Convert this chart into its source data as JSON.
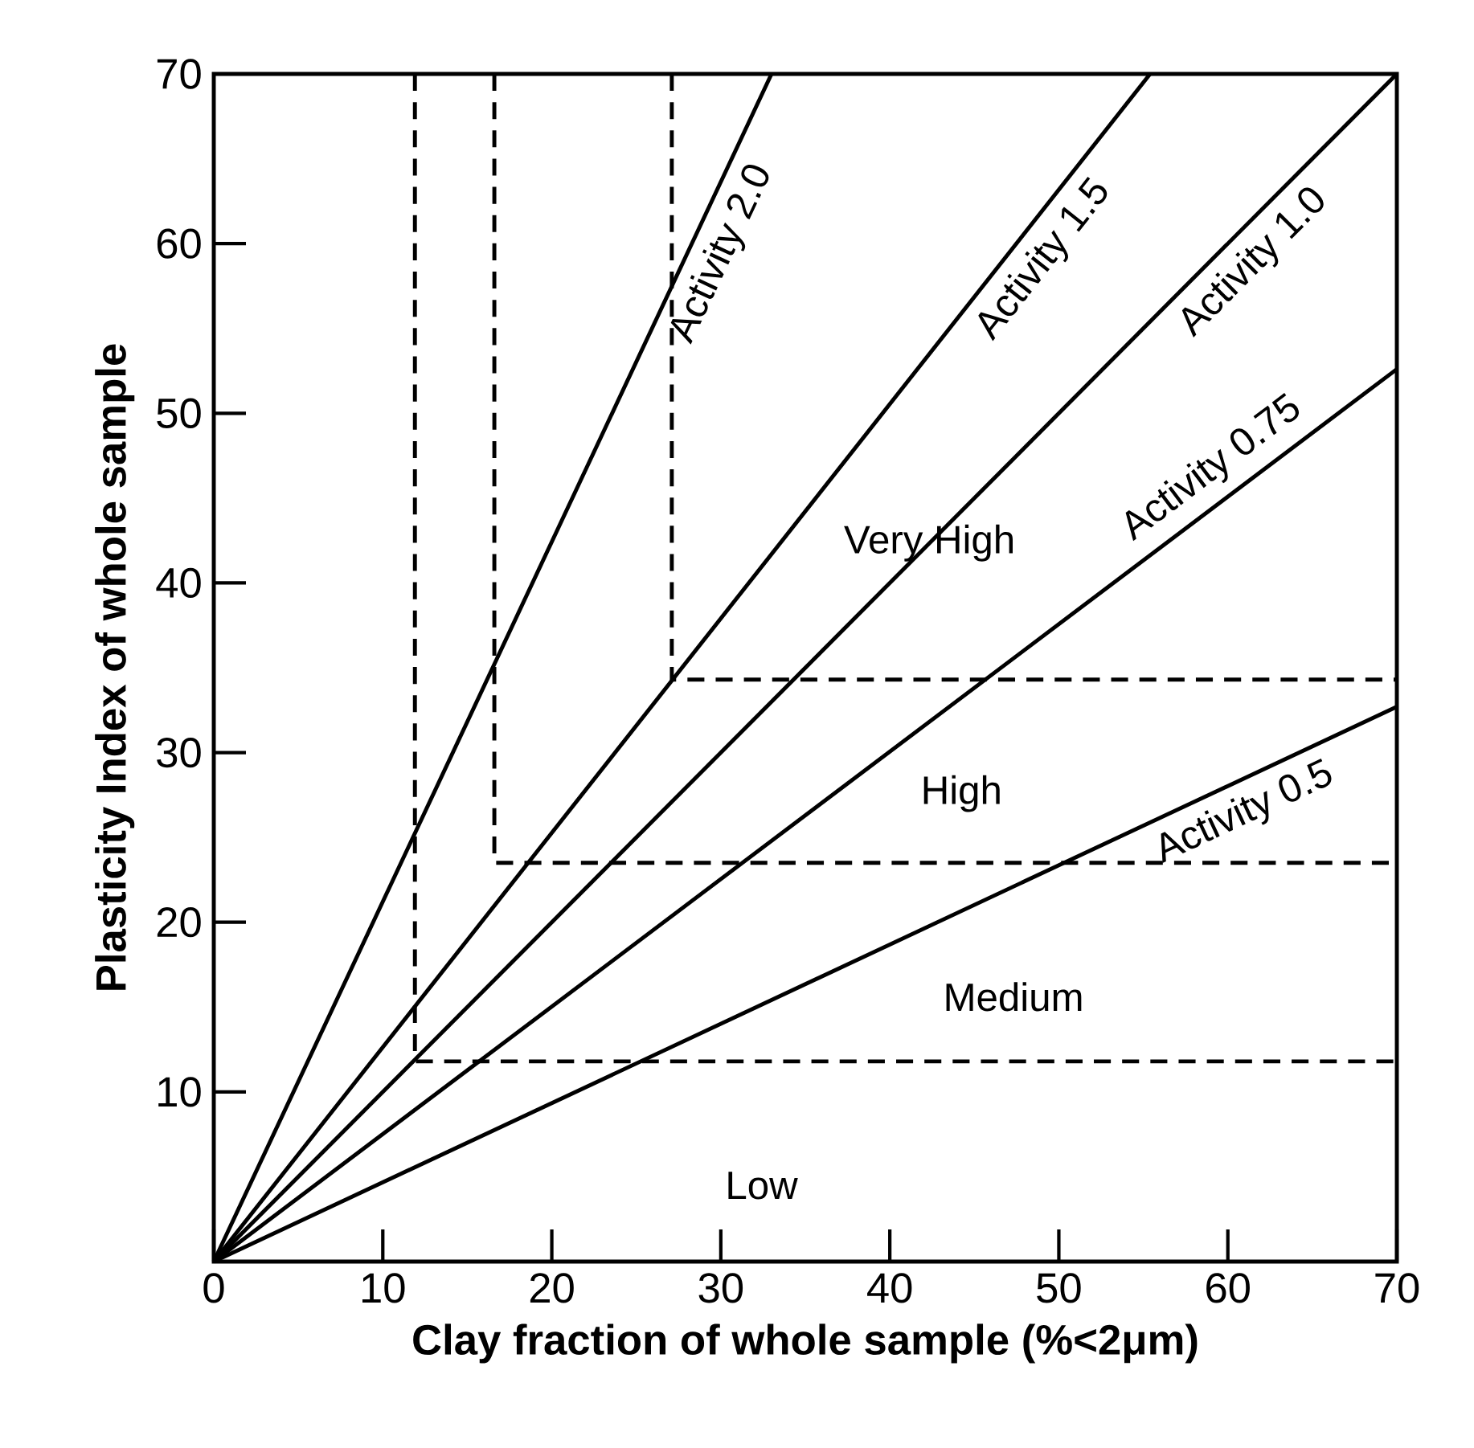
{
  "chart_data": {
    "type": "line",
    "xlabel": "Clay fraction of whole sample (%<2μm)",
    "ylabel": "Plasticity Index of whole sample",
    "xlim": [
      0,
      70
    ],
    "ylim": [
      0,
      70
    ],
    "xticks": [
      0,
      10,
      20,
      30,
      40,
      50,
      60,
      70
    ],
    "yticks": [
      10,
      20,
      30,
      40,
      50,
      60,
      70
    ],
    "grid": false,
    "marker": "none",
    "line_style": "solid",
    "series": [
      {
        "name": "Activity 2.0",
        "color": "#000000",
        "x": [
          0,
          33
        ],
        "values": [
          0,
          70
        ]
      },
      {
        "name": "Activity 1.5",
        "color": "#000000",
        "x": [
          0,
          55.4
        ],
        "values": [
          0,
          70
        ]
      },
      {
        "name": "Activity 1.0",
        "color": "#000000",
        "x": [
          0,
          70
        ],
        "values": [
          0,
          70
        ]
      },
      {
        "name": "Activity 0.75",
        "color": "#000000",
        "x": [
          0,
          70
        ],
        "values": [
          0,
          52.6
        ]
      },
      {
        "name": "Activity 0.5",
        "color": "#000000",
        "x": [
          0,
          70
        ],
        "values": [
          0,
          32.7
        ]
      },
      {
        "color": "#000000",
        "line_style": "dashed",
        "x": [
          11.9,
          11.9,
          70
        ],
        "values": [
          70,
          11.8,
          11.8
        ]
      },
      {
        "color": "#000000",
        "line_style": "dashed",
        "x": [
          16.6,
          16.6,
          70
        ],
        "values": [
          70,
          23.5,
          23.5
        ]
      },
      {
        "color": "#000000",
        "line_style": "dashed",
        "x": [
          27.1,
          27.1,
          70
        ],
        "values": [
          70,
          34.3,
          34.3
        ]
      }
    ],
    "annotations": [
      "Very High",
      "High",
      "Medium",
      "Low"
    ]
  }
}
